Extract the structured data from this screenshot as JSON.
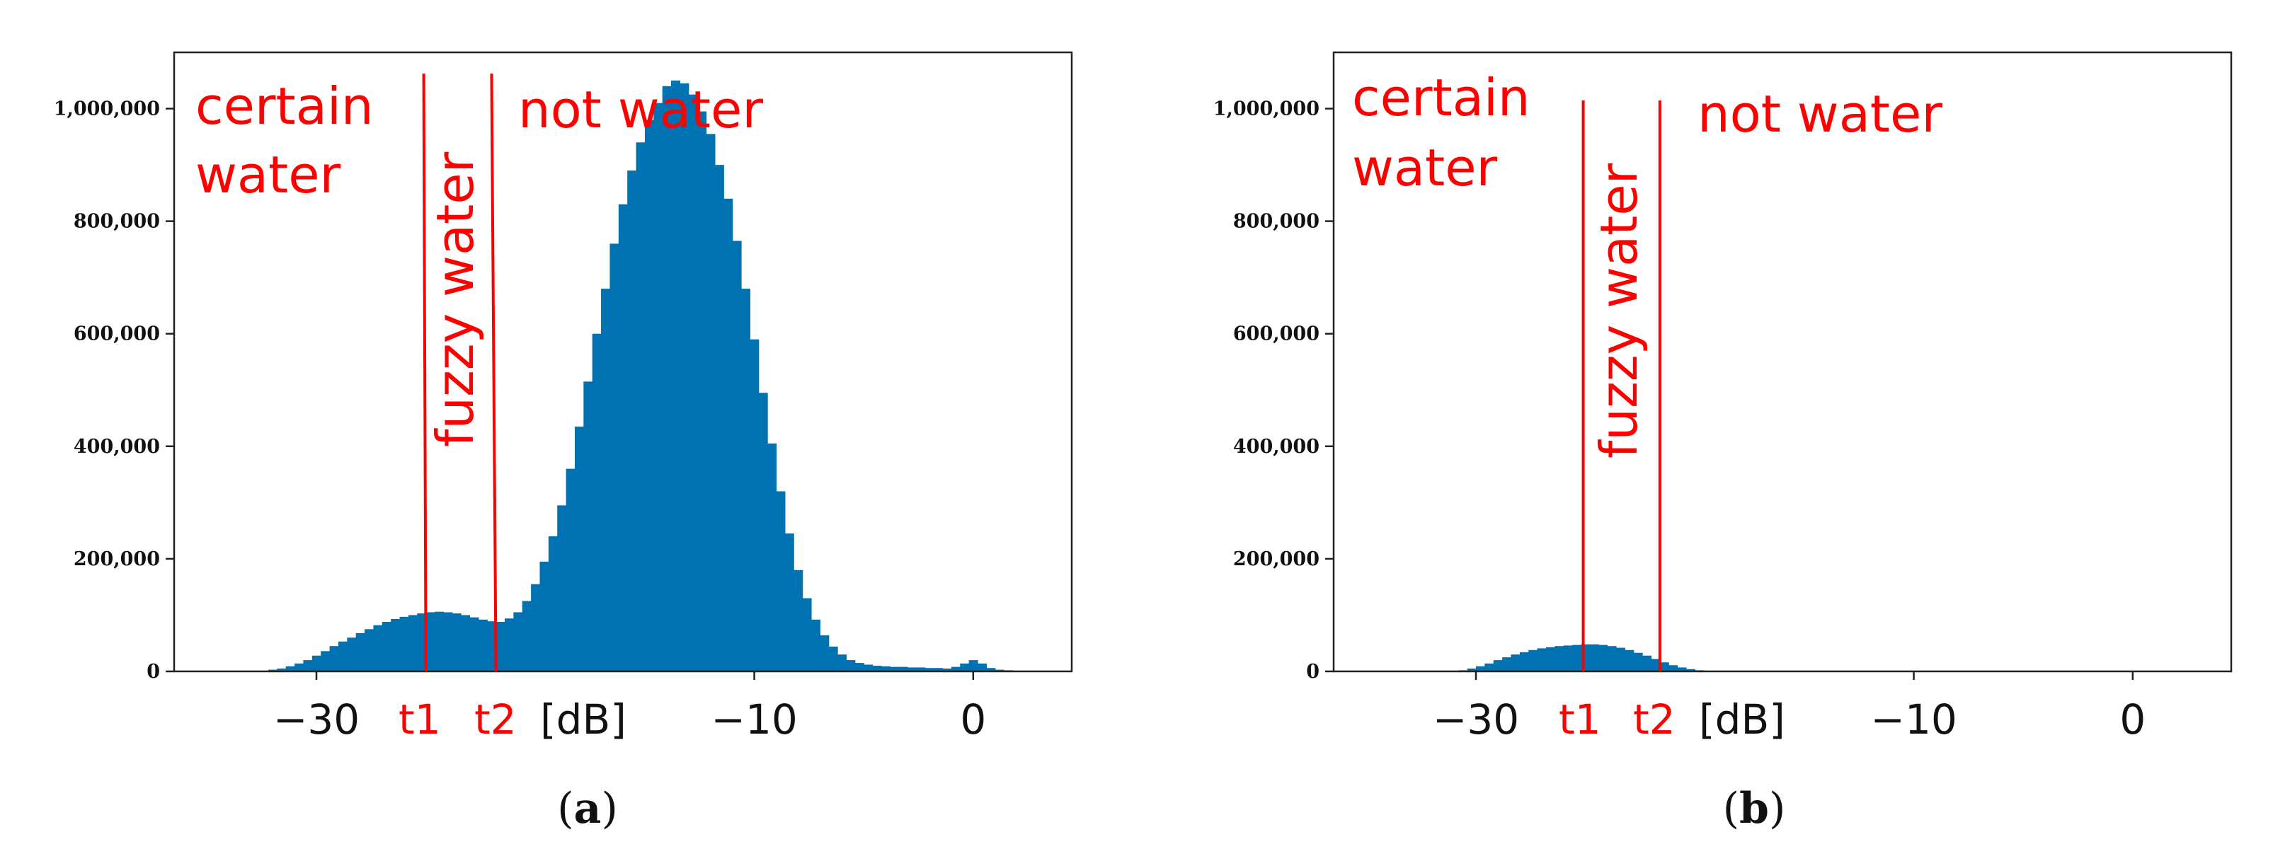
{
  "chart_data": [
    {
      "type": "bar",
      "panel_label": "a",
      "xlim": [
        -36.5,
        4.5
      ],
      "ylim": [
        0,
        1100000
      ],
      "yticks": [
        0,
        200000,
        400000,
        600000,
        800000,
        1000000
      ],
      "ytick_labels": [
        "0",
        "200,000",
        "400,000",
        "600,000",
        "800,000",
        "1,000,000"
      ],
      "xticks": [
        -30,
        -10,
        0
      ],
      "xtick_labels": [
        "−30",
        "−10",
        "0"
      ],
      "x_unit": "[dB]",
      "thresholds": [
        {
          "name": "t1",
          "x": -25.0,
          "x_top": -25.1
        },
        {
          "name": "t2",
          "x": -21.8,
          "x_top": -22.0
        }
      ],
      "annotations": [
        {
          "text_lines": [
            "certain",
            "water"
          ],
          "x": -35.2,
          "y": [
            995000,
            860000
          ]
        },
        {
          "text": "fuzzy water",
          "x": -23.0,
          "y": 580000,
          "rotation": -90
        },
        {
          "text": "not water",
          "x": -20.5,
          "y": 995000
        }
      ],
      "grid": false,
      "bin_width": 0.4,
      "x": [
        -32.0,
        -31.6,
        -31.2,
        -30.8,
        -30.4,
        -30.0,
        -29.6,
        -29.2,
        -28.8,
        -28.4,
        -28.0,
        -27.6,
        -27.2,
        -26.8,
        -26.4,
        -26.0,
        -25.6,
        -25.2,
        -24.8,
        -24.4,
        -24.0,
        -23.6,
        -23.2,
        -22.8,
        -22.4,
        -22.0,
        -21.6,
        -21.2,
        -20.8,
        -20.4,
        -20.0,
        -19.6,
        -19.2,
        -18.8,
        -18.4,
        -18.0,
        -17.6,
        -17.2,
        -16.8,
        -16.4,
        -16.0,
        -15.6,
        -15.2,
        -14.8,
        -14.4,
        -14.0,
        -13.6,
        -13.2,
        -12.8,
        -12.4,
        -12.0,
        -11.6,
        -11.2,
        -10.8,
        -10.4,
        -10.0,
        -9.6,
        -9.2,
        -8.8,
        -8.4,
        -8.0,
        -7.6,
        -7.2,
        -6.8,
        -6.4,
        -6.0,
        -5.6,
        -5.2,
        -4.8,
        -4.4,
        -4.0,
        -3.6,
        -3.2,
        -2.8,
        -2.4,
        -2.0,
        -1.6,
        -1.2,
        -0.8,
        -0.4,
        0.0,
        0.4,
        0.8,
        1.2,
        1.6,
        2.0
      ],
      "values": [
        3000,
        5000,
        9000,
        14000,
        20000,
        28000,
        36000,
        45000,
        53000,
        60000,
        68000,
        75000,
        82000,
        88000,
        93000,
        97000,
        100000,
        103000,
        105000,
        106000,
        105000,
        103000,
        100000,
        96000,
        92000,
        89000,
        88000,
        94000,
        105000,
        125000,
        155000,
        195000,
        240000,
        295000,
        360000,
        435000,
        515000,
        600000,
        680000,
        760000,
        830000,
        890000,
        940000,
        980000,
        1010000,
        1040000,
        1050000,
        1045000,
        1025000,
        995000,
        955000,
        900000,
        840000,
        765000,
        680000,
        590000,
        495000,
        405000,
        320000,
        245000,
        180000,
        130000,
        92000,
        64000,
        44000,
        30000,
        20000,
        15000,
        12000,
        10000,
        9000,
        8000,
        8000,
        7000,
        7000,
        6000,
        6000,
        5000,
        8000,
        14000,
        20000,
        14000,
        6000,
        3000,
        2000,
        1000
      ]
    },
    {
      "type": "bar",
      "panel_label": "b",
      "xlim": [
        -36.5,
        4.5
      ],
      "ylim": [
        0,
        1100000
      ],
      "yticks": [
        0,
        200000,
        400000,
        600000,
        800000,
        1000000
      ],
      "ytick_labels": [
        "0",
        "200,000",
        "400,000",
        "600,000",
        "800,000",
        "1,000,000"
      ],
      "xticks": [
        -30,
        -10,
        0
      ],
      "xtick_labels": [
        "−30",
        "−10",
        "0"
      ],
      "x_unit": "[dB]",
      "thresholds": [
        {
          "name": "t1",
          "x": -25.1,
          "x_top": -25.1
        },
        {
          "name": "t2",
          "x": -21.6,
          "x_top": -21.6
        }
      ],
      "annotations": [
        {
          "text_lines": [
            "certain",
            "water"
          ],
          "x": -35.4,
          "y": [
            990000,
            860000
          ]
        },
        {
          "text": "fuzzy water",
          "x": -23.0,
          "y": 570000,
          "rotation": -90
        },
        {
          "text": "not water",
          "x": -19.5,
          "y": 990000
        }
      ],
      "grid": false,
      "bin_width": 0.4,
      "x": [
        -30.6,
        -30.2,
        -29.8,
        -29.4,
        -29.0,
        -28.6,
        -28.2,
        -27.8,
        -27.4,
        -27.0,
        -26.6,
        -26.2,
        -25.8,
        -25.4,
        -25.0,
        -24.6,
        -24.2,
        -23.8,
        -23.4,
        -23.0,
        -22.6,
        -22.2,
        -21.8,
        -21.4,
        -21.0,
        -20.6,
        -20.2,
        -19.8,
        -19.4
      ],
      "values": [
        2000,
        5000,
        9000,
        14000,
        20000,
        25000,
        30000,
        34000,
        38000,
        41000,
        43000,
        45000,
        46000,
        47000,
        48000,
        48000,
        47000,
        45000,
        42000,
        38000,
        33000,
        28000,
        22000,
        16000,
        11000,
        7000,
        4000,
        2000,
        1000
      ]
    }
  ]
}
